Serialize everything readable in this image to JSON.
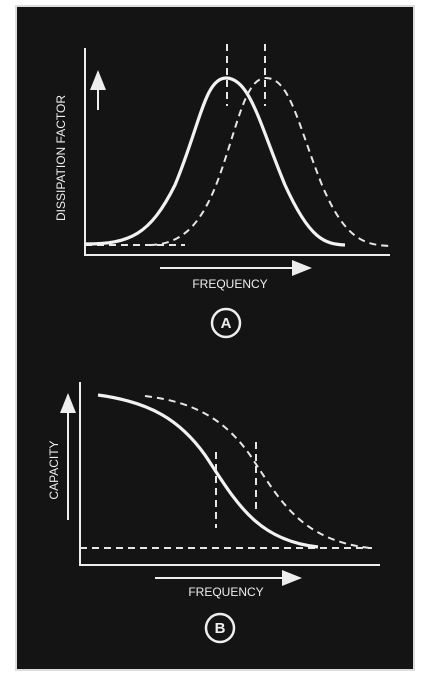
{
  "panel_a": {
    "y_label": "DISSIPATION FACTOR",
    "x_label": "FREQUENCY",
    "label": "A"
  },
  "panel_b": {
    "y_label": "CAPACITY",
    "x_label": "FREQUENCY",
    "label": "B"
  }
}
